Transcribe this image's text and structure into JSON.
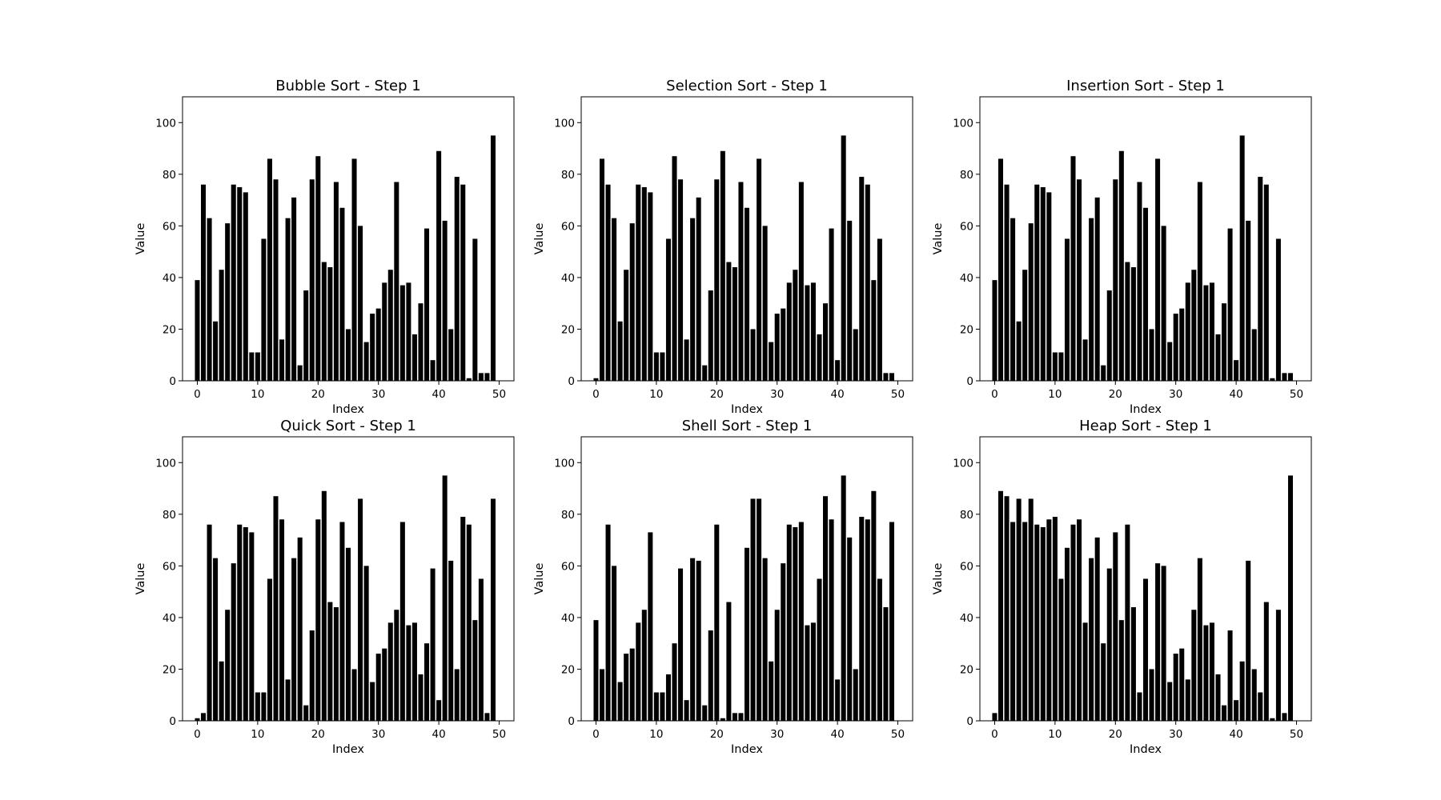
{
  "chart_data": [
    {
      "type": "bar",
      "title": "Bubble Sort - Step 1",
      "xlabel": "Index",
      "ylabel": "Value",
      "xlim": [
        -2.45,
        52.45
      ],
      "ylim": [
        0,
        110
      ],
      "xticks": [
        0,
        10,
        20,
        30,
        40,
        50
      ],
      "yticks": [
        0,
        20,
        40,
        60,
        80,
        100
      ],
      "colormap": "viridis",
      "x": [
        0,
        1,
        2,
        3,
        4,
        5,
        6,
        7,
        8,
        9,
        10,
        11,
        12,
        13,
        14,
        15,
        16,
        17,
        18,
        19,
        20,
        21,
        22,
        23,
        24,
        25,
        26,
        27,
        28,
        29,
        30,
        31,
        32,
        33,
        34,
        35,
        36,
        37,
        38,
        39,
        40,
        41,
        42,
        43,
        44,
        45,
        46,
        47,
        48,
        49
      ],
      "values": [
        39,
        76,
        63,
        23,
        43,
        61,
        76,
        75,
        73,
        11,
        11,
        55,
        86,
        78,
        16,
        63,
        71,
        6,
        35,
        78,
        87,
        46,
        44,
        77,
        67,
        20,
        86,
        60,
        15,
        26,
        28,
        38,
        43,
        77,
        37,
        38,
        18,
        30,
        59,
        8,
        89,
        62,
        20,
        79,
        76,
        1,
        55,
        3,
        3,
        95
      ]
    },
    {
      "type": "bar",
      "title": "Selection Sort - Step 1",
      "xlabel": "Index",
      "ylabel": "Value",
      "xlim": [
        -2.45,
        52.45
      ],
      "ylim": [
        0,
        110
      ],
      "xticks": [
        0,
        10,
        20,
        30,
        40,
        50
      ],
      "yticks": [
        0,
        20,
        40,
        60,
        80,
        100
      ],
      "colormap": "viridis",
      "x": [
        0,
        1,
        2,
        3,
        4,
        5,
        6,
        7,
        8,
        9,
        10,
        11,
        12,
        13,
        14,
        15,
        16,
        17,
        18,
        19,
        20,
        21,
        22,
        23,
        24,
        25,
        26,
        27,
        28,
        29,
        30,
        31,
        32,
        33,
        34,
        35,
        36,
        37,
        38,
        39,
        40,
        41,
        42,
        43,
        44,
        45,
        46,
        47,
        48,
        49
      ],
      "values": [
        1,
        86,
        76,
        63,
        23,
        43,
        61,
        76,
        75,
        73,
        11,
        11,
        55,
        87,
        78,
        16,
        63,
        71,
        6,
        35,
        78,
        89,
        46,
        44,
        77,
        67,
        20,
        86,
        60,
        15,
        26,
        28,
        38,
        43,
        77,
        37,
        38,
        18,
        30,
        59,
        8,
        95,
        62,
        20,
        79,
        76,
        39,
        55,
        3,
        3
      ]
    },
    {
      "type": "bar",
      "title": "Insertion Sort - Step 1",
      "xlabel": "Index",
      "ylabel": "Value",
      "xlim": [
        -2.45,
        52.45
      ],
      "ylim": [
        0,
        110
      ],
      "xticks": [
        0,
        10,
        20,
        30,
        40,
        50
      ],
      "yticks": [
        0,
        20,
        40,
        60,
        80,
        100
      ],
      "colormap": "viridis",
      "x": [
        0,
        1,
        2,
        3,
        4,
        5,
        6,
        7,
        8,
        9,
        10,
        11,
        12,
        13,
        14,
        15,
        16,
        17,
        18,
        19,
        20,
        21,
        22,
        23,
        24,
        25,
        26,
        27,
        28,
        29,
        30,
        31,
        32,
        33,
        34,
        35,
        36,
        37,
        38,
        39,
        40,
        41,
        42,
        43,
        44,
        45,
        46,
        47,
        48,
        49
      ],
      "values": [
        39,
        86,
        76,
        63,
        23,
        43,
        61,
        76,
        75,
        73,
        11,
        11,
        55,
        87,
        78,
        16,
        63,
        71,
        6,
        35,
        78,
        89,
        46,
        44,
        77,
        67,
        20,
        86,
        60,
        15,
        26,
        28,
        38,
        43,
        77,
        37,
        38,
        18,
        30,
        59,
        8,
        95,
        62,
        20,
        79,
        76,
        1,
        55,
        3,
        3
      ]
    },
    {
      "type": "bar",
      "title": "Quick Sort - Step 1",
      "xlabel": "Index",
      "ylabel": "Value",
      "xlim": [
        -2.45,
        52.45
      ],
      "ylim": [
        0,
        110
      ],
      "xticks": [
        0,
        10,
        20,
        30,
        40,
        50
      ],
      "yticks": [
        0,
        20,
        40,
        60,
        80,
        100
      ],
      "colormap": "viridis",
      "x": [
        0,
        1,
        2,
        3,
        4,
        5,
        6,
        7,
        8,
        9,
        10,
        11,
        12,
        13,
        14,
        15,
        16,
        17,
        18,
        19,
        20,
        21,
        22,
        23,
        24,
        25,
        26,
        27,
        28,
        29,
        30,
        31,
        32,
        33,
        34,
        35,
        36,
        37,
        38,
        39,
        40,
        41,
        42,
        43,
        44,
        45,
        46,
        47,
        48,
        49
      ],
      "values": [
        1,
        3,
        76,
        63,
        23,
        43,
        61,
        76,
        75,
        73,
        11,
        11,
        55,
        87,
        78,
        16,
        63,
        71,
        6,
        35,
        78,
        89,
        46,
        44,
        77,
        67,
        20,
        86,
        60,
        15,
        26,
        28,
        38,
        43,
        77,
        37,
        38,
        18,
        30,
        59,
        8,
        95,
        62,
        20,
        79,
        76,
        39,
        55,
        3,
        86
      ]
    },
    {
      "type": "bar",
      "title": "Shell Sort - Step 1",
      "xlabel": "Index",
      "ylabel": "Value",
      "xlim": [
        -2.45,
        52.45
      ],
      "ylim": [
        0,
        110
      ],
      "xticks": [
        0,
        10,
        20,
        30,
        40,
        50
      ],
      "yticks": [
        0,
        20,
        40,
        60,
        80,
        100
      ],
      "colormap": "viridis",
      "x": [
        0,
        1,
        2,
        3,
        4,
        5,
        6,
        7,
        8,
        9,
        10,
        11,
        12,
        13,
        14,
        15,
        16,
        17,
        18,
        19,
        20,
        21,
        22,
        23,
        24,
        25,
        26,
        27,
        28,
        29,
        30,
        31,
        32,
        33,
        34,
        35,
        36,
        37,
        38,
        39,
        40,
        41,
        42,
        43,
        44,
        45,
        46,
        47,
        48,
        49
      ],
      "values": [
        39,
        20,
        76,
        60,
        15,
        26,
        28,
        38,
        43,
        73,
        11,
        11,
        18,
        30,
        59,
        8,
        63,
        62,
        6,
        35,
        76,
        1,
        46,
        3,
        3,
        67,
        86,
        86,
        63,
        23,
        43,
        61,
        76,
        75,
        77,
        37,
        38,
        55,
        87,
        78,
        16,
        95,
        71,
        20,
        79,
        78,
        89,
        55,
        44,
        77
      ]
    },
    {
      "type": "bar",
      "title": "Heap Sort - Step 1",
      "xlabel": "Index",
      "ylabel": "Value",
      "xlim": [
        -2.45,
        52.45
      ],
      "ylim": [
        0,
        110
      ],
      "xticks": [
        0,
        10,
        20,
        30,
        40,
        50
      ],
      "yticks": [
        0,
        20,
        40,
        60,
        80,
        100
      ],
      "colormap": "viridis",
      "x": [
        0,
        1,
        2,
        3,
        4,
        5,
        6,
        7,
        8,
        9,
        10,
        11,
        12,
        13,
        14,
        15,
        16,
        17,
        18,
        19,
        20,
        21,
        22,
        23,
        24,
        25,
        26,
        27,
        28,
        29,
        30,
        31,
        32,
        33,
        34,
        35,
        36,
        37,
        38,
        39,
        40,
        41,
        42,
        43,
        44,
        45,
        46,
        47,
        48,
        49
      ],
      "values": [
        3,
        89,
        87,
        77,
        86,
        77,
        86,
        76,
        75,
        78,
        79,
        55,
        67,
        76,
        78,
        38,
        63,
        71,
        30,
        59,
        73,
        39,
        76,
        44,
        11,
        55,
        20,
        61,
        60,
        15,
        26,
        28,
        16,
        43,
        63,
        37,
        38,
        18,
        6,
        35,
        8,
        23,
        62,
        20,
        11,
        46,
        1,
        43,
        3,
        95
      ]
    }
  ]
}
